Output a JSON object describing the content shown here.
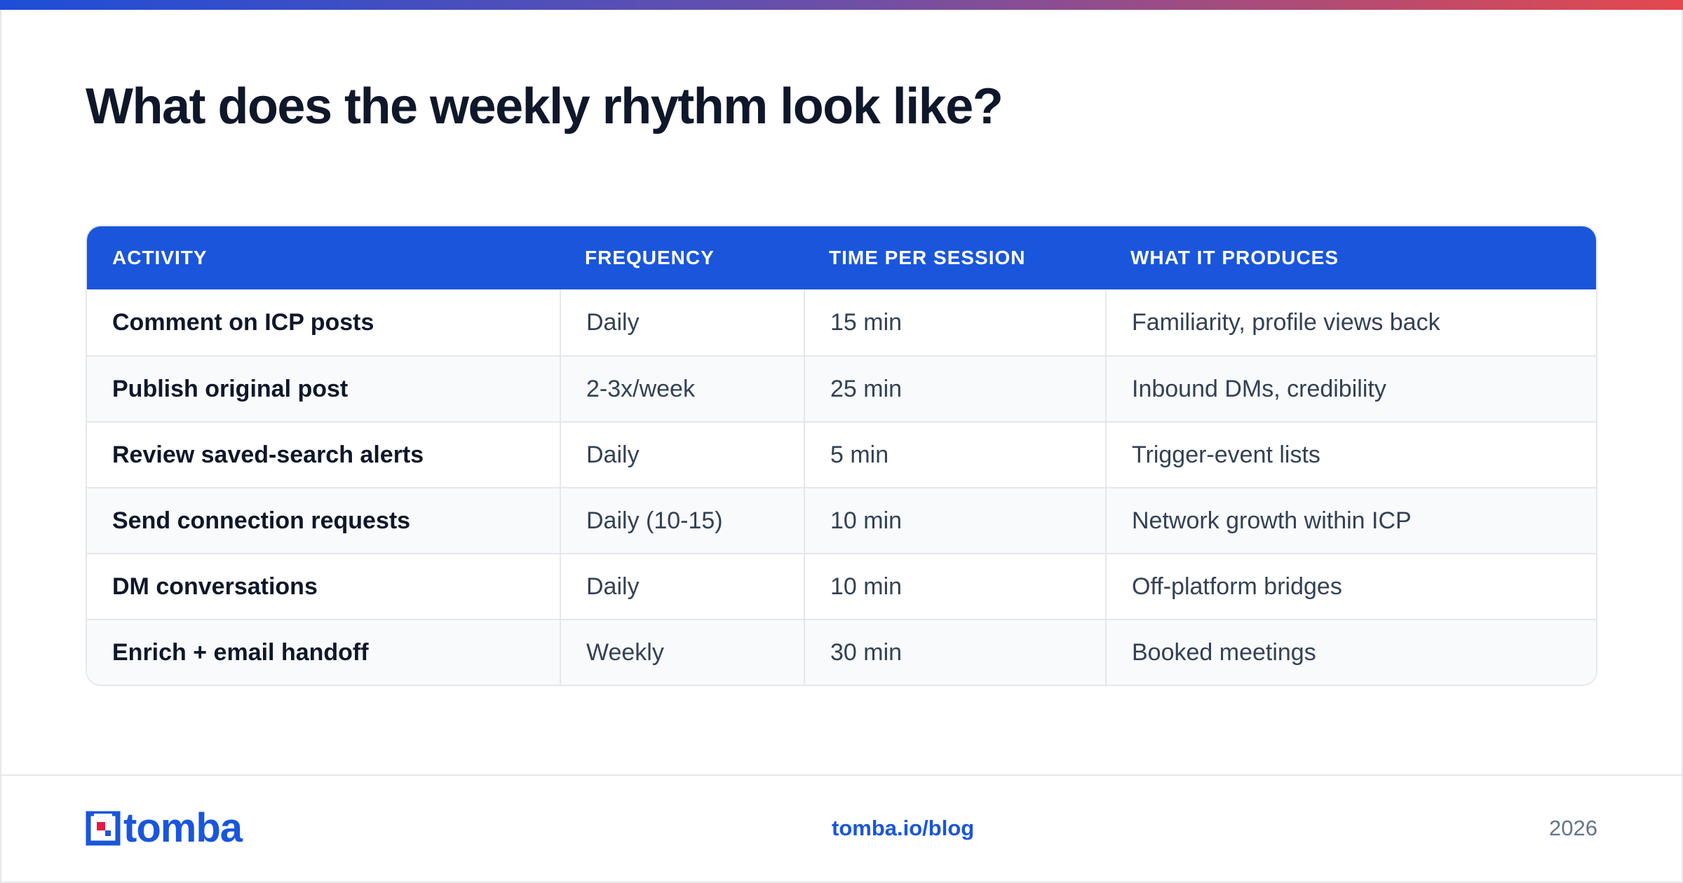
{
  "heading": "What does the weekly rhythm look like?",
  "table": {
    "columns": [
      "ACTIVITY",
      "FREQUENCY",
      "TIME PER SESSION",
      "WHAT IT PRODUCES"
    ],
    "rows": [
      [
        "Comment on ICP posts",
        "Daily",
        "15 min",
        "Familiarity, profile views back"
      ],
      [
        "Publish original post",
        "2-3x/week",
        "25 min",
        "Inbound DMs, credibility"
      ],
      [
        "Review saved-search alerts",
        "Daily",
        "5 min",
        "Trigger-event lists"
      ],
      [
        "Send connection requests",
        "Daily (10-15)",
        "10 min",
        "Network growth within ICP"
      ],
      [
        "DM conversations",
        "Daily",
        "10 min",
        "Off-platform bridges"
      ],
      [
        "Enrich + email handoff",
        "Weekly",
        "30 min",
        "Booked meetings"
      ]
    ]
  },
  "footer": {
    "logo_text": "tomba",
    "link": "tomba.io/blog",
    "year": "2026"
  },
  "colors": {
    "accent": "#1a56db",
    "gradient_start": "#1d4ed8",
    "gradient_end": "#e5484d",
    "logo_square": "#e11d48"
  },
  "icons": {
    "logo": "tomba-logo-icon"
  }
}
